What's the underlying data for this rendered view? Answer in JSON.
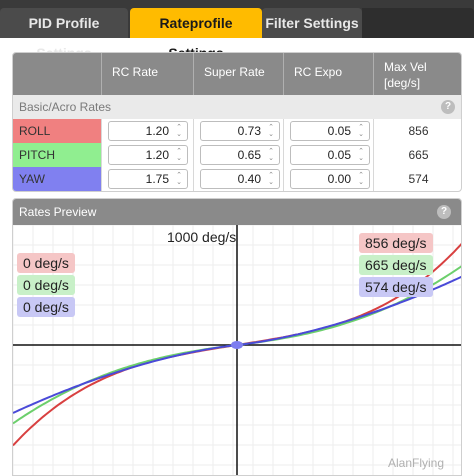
{
  "tabs": [
    {
      "label": "PID Profile Settings"
    },
    {
      "label": "Rateprofile Settings"
    },
    {
      "label": "Filter Settings"
    }
  ],
  "rates_table": {
    "headers": {
      "rc_rate": "RC Rate",
      "super_rate": "Super Rate",
      "rc_expo": "RC Expo",
      "max_vel_line1": "Max Vel",
      "max_vel_line2": "[deg/s]"
    },
    "section": "Basic/Acro Rates",
    "rows": [
      {
        "label": "ROLL",
        "rc_rate": "1.20",
        "super_rate": "0.73",
        "rc_expo": "0.05",
        "max_vel": "856",
        "color": "#f08080"
      },
      {
        "label": "PITCH",
        "rc_rate": "1.20",
        "super_rate": "0.65",
        "rc_expo": "0.05",
        "max_vel": "665",
        "color": "#90ee90"
      },
      {
        "label": "YAW",
        "rc_rate": "1.75",
        "super_rate": "0.40",
        "rc_expo": "0.00",
        "max_vel": "574",
        "color": "#8080f0"
      }
    ]
  },
  "preview": {
    "title": "Rates Preview",
    "axis_max_label": "1000 deg/s",
    "current_labels": [
      {
        "text": "0 deg/s",
        "color": "#f5c6c6"
      },
      {
        "text": "0 deg/s",
        "color": "#c8f0c8"
      },
      {
        "text": "0 deg/s",
        "color": "#c8c8f5"
      }
    ],
    "max_labels": [
      {
        "text": "856 deg/s",
        "color": "#f5c6c6"
      },
      {
        "text": "665 deg/s",
        "color": "#c8f0c8"
      },
      {
        "text": "574 deg/s",
        "color": "#c8c8f5"
      }
    ],
    "series": [
      {
        "name": "ROLL",
        "max": 856,
        "color": "#d84040"
      },
      {
        "name": "PITCH",
        "max": 665,
        "color": "#6ccf6c"
      },
      {
        "name": "YAW",
        "max": 574,
        "color": "#4a4ad8"
      }
    ],
    "scale_max": 1000
  },
  "watermark": "AlanFlying"
}
